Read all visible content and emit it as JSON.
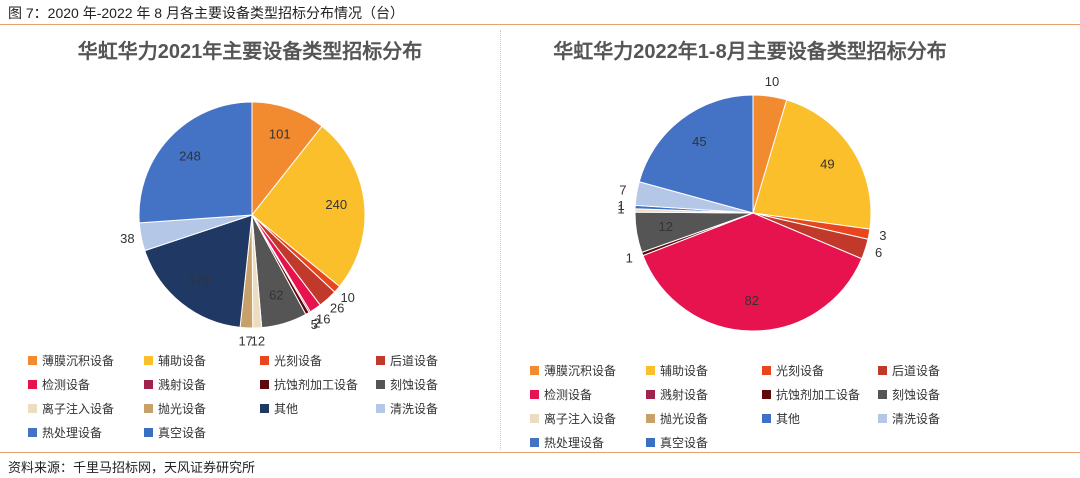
{
  "header": {
    "title": "图 7：2020 年-2022 年 8 月各主要设备类型招标分布情况（台）"
  },
  "source": "资料来源：千里马招标网，天风证券研究所",
  "chart_data": [
    {
      "type": "pie",
      "title": "华虹华力2021年主要设备类型招标分布",
      "categories": [
        "薄膜沉积设备",
        "辅助设备",
        "光刻设备",
        "后道设备",
        "检测设备",
        "溅射设备",
        "抗蚀剂加工设备",
        "刻蚀设备",
        "离子注入设备",
        "抛光设备",
        "其他",
        "清洗设备",
        "热处理设备",
        "真空设备"
      ],
      "values": [
        101,
        240,
        10,
        26,
        16,
        2,
        5,
        62,
        12,
        17,
        173,
        38,
        248,
        null
      ],
      "colors": [
        "#f28a30",
        "#fbbf2c",
        "#e8461e",
        "#c0392b",
        "#e6134f",
        "#a0234b",
        "#5c0a0a",
        "#555555",
        "#ecdcc0",
        "#c8a06a",
        "#1f3864",
        "#b4c7e7",
        "#4472c4",
        "#3a6fc4"
      ],
      "legend": "bottom"
    },
    {
      "type": "pie",
      "title": "华虹华力2022年1-8月主要设备类型招标分布",
      "categories": [
        "薄膜沉积设备",
        "辅助设备",
        "光刻设备",
        "后道设备",
        "检测设备",
        "溅射设备",
        "抗蚀剂加工设备",
        "刻蚀设备",
        "离子注入设备",
        "抛光设备",
        "其他",
        "清洗设备",
        "热处理设备",
        "真空设备"
      ],
      "values": [
        10,
        49,
        3,
        6,
        82,
        null,
        1,
        12,
        1,
        null,
        1,
        7,
        45,
        null
      ],
      "colors": [
        "#f28a30",
        "#fbbf2c",
        "#e8461e",
        "#c0392b",
        "#e6134f",
        "#a0234b",
        "#5c0a0a",
        "#555555",
        "#ecdcc0",
        "#c8a06a",
        "#3f6fc7",
        "#b4c7e7",
        "#4472c4",
        "#3a6fc4"
      ],
      "legend": "bottom"
    }
  ]
}
